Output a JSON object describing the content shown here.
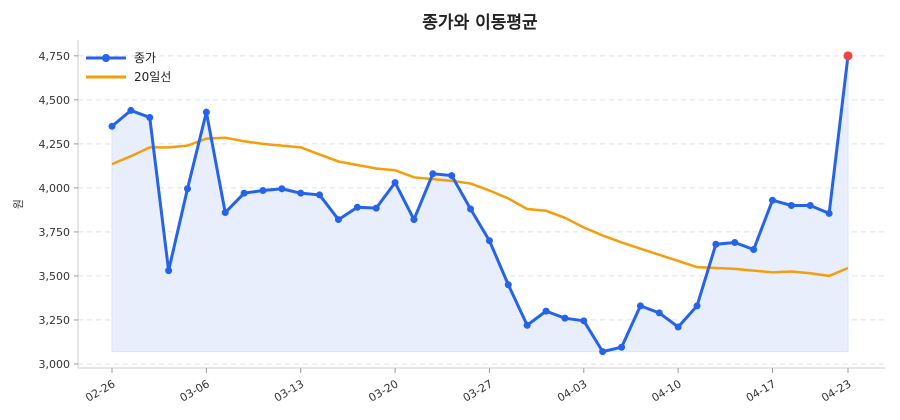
{
  "chart_data": {
    "type": "line",
    "title": "종가와 이동평균",
    "xlabel": "",
    "ylabel": "원",
    "x": [
      "02-26",
      "02-27",
      "02-28",
      "03-04",
      "03-05",
      "03-06",
      "03-07",
      "03-10",
      "03-11",
      "03-12",
      "03-13",
      "03-14",
      "03-17",
      "03-18",
      "03-19",
      "03-20",
      "03-21",
      "03-24",
      "03-25",
      "03-26",
      "03-27",
      "03-28",
      "03-31",
      "04-01",
      "04-02",
      "04-03",
      "04-04",
      "04-07",
      "04-08",
      "04-09",
      "04-10",
      "04-11",
      "04-14",
      "04-15",
      "04-16",
      "04-17",
      "04-18",
      "04-21",
      "04-22",
      "04-23"
    ],
    "xticks": [
      "02-26",
      "03-06",
      "03-13",
      "03-20",
      "03-27",
      "04-03",
      "04-10",
      "04-17",
      "04-23"
    ],
    "yticks": [
      3000,
      3250,
      3500,
      3750,
      4000,
      4250,
      4500,
      4750
    ],
    "ytick_labels": [
      "3,000",
      "3,250",
      "3,500",
      "3,750",
      "4,000",
      "4,250",
      "4,500",
      "4,750"
    ],
    "ylim": [
      2977,
      4840
    ],
    "grid": "horizontal dashed",
    "legend_position": "top-left",
    "series": [
      {
        "name": "종가",
        "color": "#2563eb",
        "markers": true,
        "fill": "#e8eefb",
        "values": [
          4350,
          4440,
          4400,
          3530,
          3995,
          4430,
          3860,
          3970,
          3985,
          3995,
          3970,
          3960,
          3820,
          3890,
          3885,
          4030,
          3820,
          4080,
          4070,
          3880,
          3700,
          3450,
          3220,
          3300,
          3260,
          3245,
          3070,
          3095,
          3330,
          3290,
          3210,
          3330,
          3680,
          3690,
          3650,
          3930,
          3900,
          3900,
          3855,
          4750
        ],
        "highlight_last_color": "#ef4444"
      },
      {
        "name": "20일선",
        "color": "#f59e0b",
        "markers": false,
        "values": [
          4135,
          4180,
          4230,
          4230,
          4240,
          4280,
          4285,
          4265,
          4250,
          4240,
          4230,
          4190,
          4150,
          4130,
          4110,
          4100,
          4060,
          4050,
          4040,
          4025,
          3985,
          3940,
          3880,
          3870,
          3830,
          3775,
          3730,
          3690,
          3655,
          3620,
          3585,
          3550,
          3545,
          3540,
          3530,
          3520,
          3525,
          3515,
          3500,
          3545
        ]
      }
    ]
  }
}
